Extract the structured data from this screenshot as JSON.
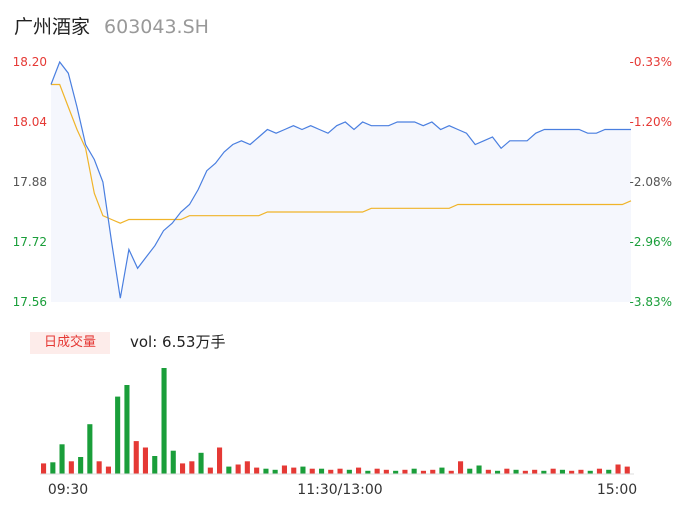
{
  "header": {
    "name": "广州酒家",
    "code": "603043.SH"
  },
  "chart_data": {
    "type": "line",
    "price_axis": {
      "ticks": [
        "18.20",
        "18.04",
        "17.88",
        "17.72",
        "17.56"
      ],
      "min": 17.56,
      "max": 18.2
    },
    "pct_axis": {
      "ticks": [
        "-0.33%",
        "-1.20%",
        "-2.08%",
        "-2.96%",
        "-3.83%"
      ]
    },
    "time_ticks": [
      "09:30",
      "11:30/13:00",
      "15:00"
    ],
    "series": [
      {
        "role": "price",
        "color": "#4a7fe0",
        "values": [
          18.14,
          18.2,
          18.17,
          18.08,
          17.98,
          17.94,
          17.88,
          17.72,
          17.57,
          17.7,
          17.65,
          17.68,
          17.71,
          17.75,
          17.77,
          17.8,
          17.82,
          17.86,
          17.91,
          17.93,
          17.96,
          17.98,
          17.99,
          17.98,
          18.0,
          18.02,
          18.01,
          18.02,
          18.03,
          18.02,
          18.03,
          18.02,
          18.01,
          18.03,
          18.04,
          18.02,
          18.04,
          18.03,
          18.03,
          18.03,
          18.04,
          18.04,
          18.04,
          18.03,
          18.04,
          18.02,
          18.03,
          18.02,
          18.01,
          17.98,
          17.99,
          18.0,
          17.97,
          17.99,
          17.99,
          17.99,
          18.01,
          18.02,
          18.02,
          18.02,
          18.02,
          18.02,
          18.01,
          18.01,
          18.02,
          18.02,
          18.02,
          18.02
        ]
      },
      {
        "role": "average",
        "color": "#f0b429",
        "values": [
          18.14,
          18.14,
          18.08,
          18.02,
          17.97,
          17.85,
          17.79,
          17.78,
          17.77,
          17.78,
          17.78,
          17.78,
          17.78,
          17.78,
          17.78,
          17.78,
          17.79,
          17.79,
          17.79,
          17.79,
          17.79,
          17.79,
          17.79,
          17.79,
          17.79,
          17.8,
          17.8,
          17.8,
          17.8,
          17.8,
          17.8,
          17.8,
          17.8,
          17.8,
          17.8,
          17.8,
          17.8,
          17.81,
          17.81,
          17.81,
          17.81,
          17.81,
          17.81,
          17.81,
          17.81,
          17.81,
          17.81,
          17.82,
          17.82,
          17.82,
          17.82,
          17.82,
          17.82,
          17.82,
          17.82,
          17.82,
          17.82,
          17.82,
          17.82,
          17.82,
          17.82,
          17.82,
          17.82,
          17.82,
          17.82,
          17.82,
          17.82,
          17.83
        ]
      }
    ],
    "volume": {
      "label": "日成交量",
      "text": "vol: 6.53万手",
      "bars": [
        {
          "v": 0.1,
          "c": "red"
        },
        {
          "v": 0.11,
          "c": "green"
        },
        {
          "v": 0.28,
          "c": "green"
        },
        {
          "v": 0.12,
          "c": "red"
        },
        {
          "v": 0.16,
          "c": "green"
        },
        {
          "v": 0.47,
          "c": "green"
        },
        {
          "v": 0.12,
          "c": "red"
        },
        {
          "v": 0.07,
          "c": "red"
        },
        {
          "v": 0.73,
          "c": "green"
        },
        {
          "v": 0.84,
          "c": "green"
        },
        {
          "v": 0.31,
          "c": "red"
        },
        {
          "v": 0.25,
          "c": "red"
        },
        {
          "v": 0.17,
          "c": "green"
        },
        {
          "v": 1.0,
          "c": "green"
        },
        {
          "v": 0.22,
          "c": "green"
        },
        {
          "v": 0.1,
          "c": "red"
        },
        {
          "v": 0.12,
          "c": "red"
        },
        {
          "v": 0.2,
          "c": "green"
        },
        {
          "v": 0.06,
          "c": "red"
        },
        {
          "v": 0.25,
          "c": "red"
        },
        {
          "v": 0.07,
          "c": "green"
        },
        {
          "v": 0.09,
          "c": "red"
        },
        {
          "v": 0.12,
          "c": "red"
        },
        {
          "v": 0.06,
          "c": "red"
        },
        {
          "v": 0.05,
          "c": "green"
        },
        {
          "v": 0.04,
          "c": "green"
        },
        {
          "v": 0.08,
          "c": "red"
        },
        {
          "v": 0.06,
          "c": "red"
        },
        {
          "v": 0.07,
          "c": "green"
        },
        {
          "v": 0.05,
          "c": "red"
        },
        {
          "v": 0.05,
          "c": "green"
        },
        {
          "v": 0.04,
          "c": "red"
        },
        {
          "v": 0.05,
          "c": "red"
        },
        {
          "v": 0.04,
          "c": "green"
        },
        {
          "v": 0.06,
          "c": "red"
        },
        {
          "v": 0.03,
          "c": "green"
        },
        {
          "v": 0.05,
          "c": "red"
        },
        {
          "v": 0.04,
          "c": "red"
        },
        {
          "v": 0.03,
          "c": "green"
        },
        {
          "v": 0.04,
          "c": "red"
        },
        {
          "v": 0.05,
          "c": "green"
        },
        {
          "v": 0.03,
          "c": "red"
        },
        {
          "v": 0.04,
          "c": "red"
        },
        {
          "v": 0.06,
          "c": "green"
        },
        {
          "v": 0.03,
          "c": "red"
        },
        {
          "v": 0.12,
          "c": "red"
        },
        {
          "v": 0.05,
          "c": "green"
        },
        {
          "v": 0.08,
          "c": "green"
        },
        {
          "v": 0.04,
          "c": "red"
        },
        {
          "v": 0.03,
          "c": "green"
        },
        {
          "v": 0.05,
          "c": "red"
        },
        {
          "v": 0.04,
          "c": "green"
        },
        {
          "v": 0.03,
          "c": "red"
        },
        {
          "v": 0.04,
          "c": "red"
        },
        {
          "v": 0.03,
          "c": "green"
        },
        {
          "v": 0.05,
          "c": "red"
        },
        {
          "v": 0.04,
          "c": "green"
        },
        {
          "v": 0.03,
          "c": "red"
        },
        {
          "v": 0.04,
          "c": "red"
        },
        {
          "v": 0.03,
          "c": "green"
        },
        {
          "v": 0.05,
          "c": "red"
        },
        {
          "v": 0.04,
          "c": "green"
        },
        {
          "v": 0.09,
          "c": "red"
        },
        {
          "v": 0.07,
          "c": "red"
        }
      ]
    }
  }
}
